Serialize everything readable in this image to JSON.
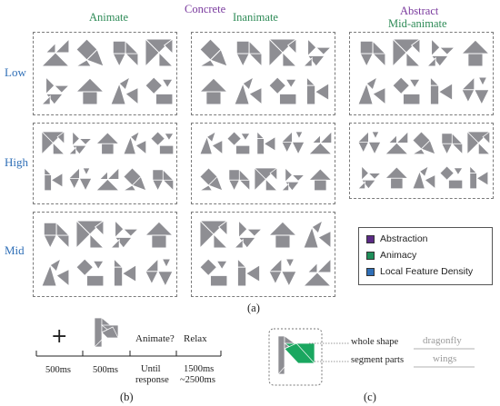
{
  "headers": {
    "concrete": "Concrete",
    "animate": "Animate",
    "inanimate": "Inanimate",
    "abstract": "Abstract",
    "mid_animate": "Mid-animate"
  },
  "rows": {
    "low": "Low",
    "high": "High",
    "mid": "Mid"
  },
  "legend": {
    "items": [
      {
        "label": "Abstraction",
        "color": "#5b2a86"
      },
      {
        "label": "Animacy",
        "color": "#1f8f5a"
      },
      {
        "label": "Local Feature Density",
        "color": "#2f6fb7"
      }
    ]
  },
  "colors": {
    "purple": "#7a3a9e",
    "green": "#2e8b57",
    "blue": "#2f6fb7",
    "tangram": "#8e8e93",
    "segment": "#1aa760"
  },
  "captions": {
    "a": "(a)",
    "b": "(b)",
    "c": "(c)"
  },
  "timeline": {
    "fixation": "+",
    "question": "Animate?",
    "relax": "Relax",
    "durations": [
      "500ms",
      "500ms",
      "Until",
      "response",
      "1500ms",
      "~2500ms"
    ]
  },
  "annotation": {
    "whole_shape": "whole shape",
    "segment_parts": "segment parts",
    "whole_answer": "dragonfly",
    "segment_answer": "wings"
  }
}
